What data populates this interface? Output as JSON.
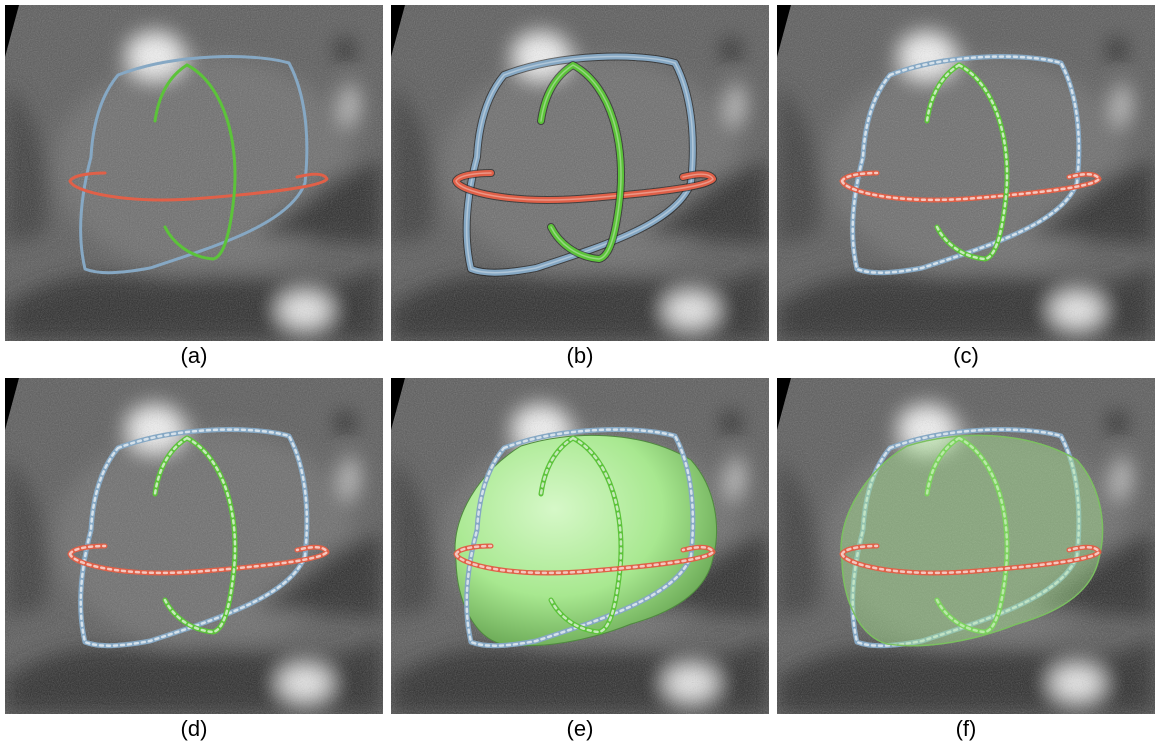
{
  "figure": {
    "panels": [
      {
        "caption": "(a)",
        "curve_style": "thin",
        "surface": "none"
      },
      {
        "caption": "(b)",
        "curve_style": "ribbon",
        "surface": "none"
      },
      {
        "caption": "(c)",
        "curve_style": "braided",
        "surface": "none"
      },
      {
        "caption": "(d)",
        "curve_style": "braided",
        "surface": "none"
      },
      {
        "caption": "(e)",
        "curve_style": "braided",
        "surface": "opaque"
      },
      {
        "caption": "(f)",
        "curve_style": "braided",
        "surface": "transparent"
      }
    ],
    "colors": {
      "contour_blue": "#86a8c4",
      "contour_green": "#5cc33a",
      "contour_red": "#e06048",
      "surface_green": "#a8e890"
    }
  }
}
